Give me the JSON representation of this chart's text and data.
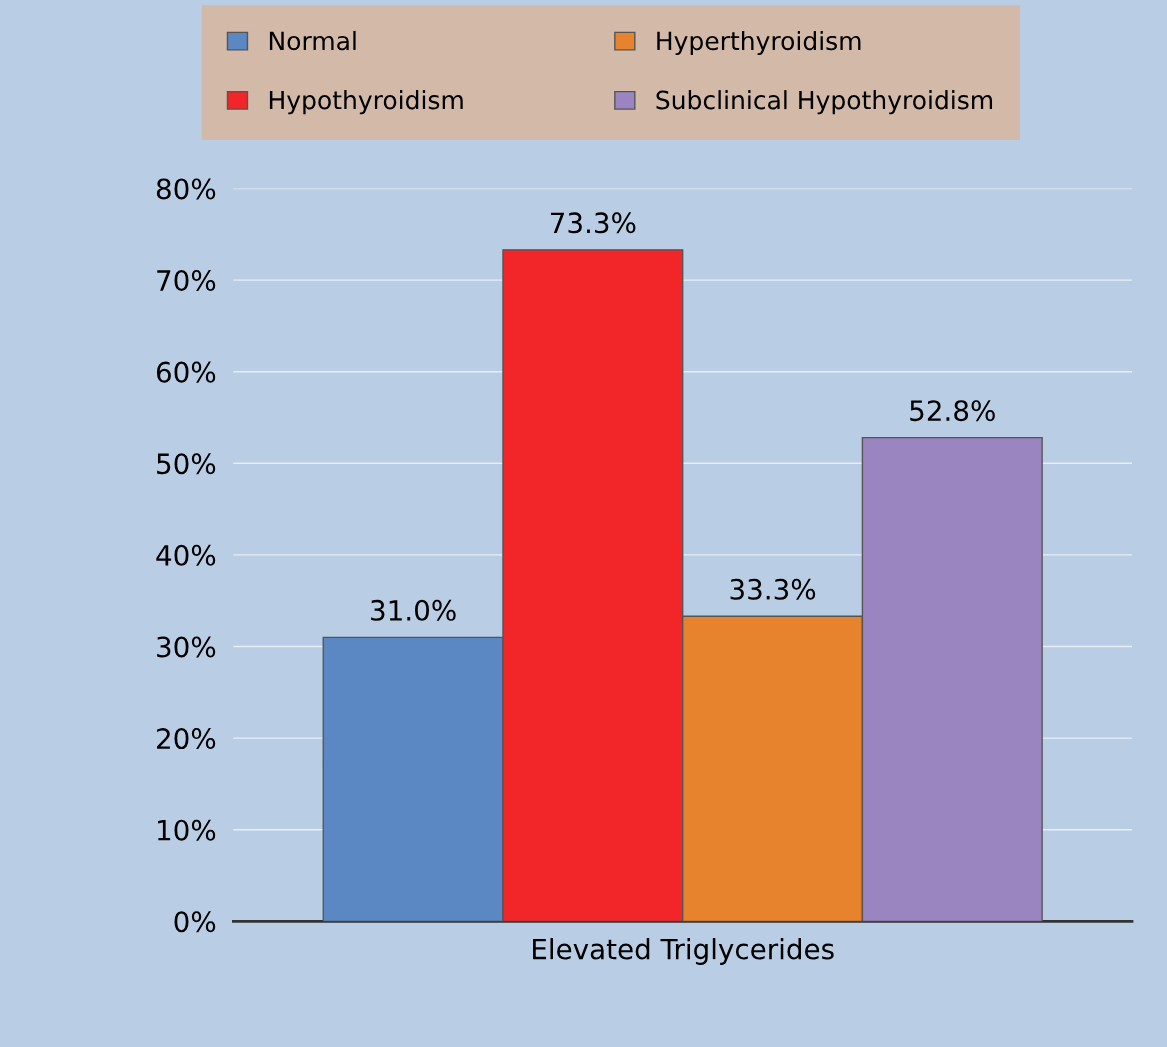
{
  "chart_data": {
    "type": "bar",
    "categories": [
      "Elevated Triglycerides"
    ],
    "series": [
      {
        "name": "Normal",
        "color": "#5b87c2",
        "values": [
          31.0
        ],
        "value_labels": [
          "31.0%"
        ]
      },
      {
        "name": "Hypothyroidism",
        "color": "#f22528",
        "values": [
          73.3
        ],
        "value_labels": [
          "73.3%"
        ]
      },
      {
        "name": "Hyperthyroidism",
        "color": "#e6832c",
        "values": [
          33.3
        ],
        "value_labels": [
          "33.3%"
        ]
      },
      {
        "name": "Subclinical Hypothyroidism",
        "color": "#9a85c0",
        "values": [
          52.8
        ],
        "value_labels": [
          "52.8%"
        ]
      }
    ],
    "ylim": [
      0,
      80
    ],
    "yticks": [
      {
        "value": 0,
        "label": "0%"
      },
      {
        "value": 10,
        "label": "10%"
      },
      {
        "value": 20,
        "label": "20%"
      },
      {
        "value": 30,
        "label": "30%"
      },
      {
        "value": 40,
        "label": "40%"
      },
      {
        "value": 50,
        "label": "50%"
      },
      {
        "value": 60,
        "label": "60%"
      },
      {
        "value": 70,
        "label": "70%"
      },
      {
        "value": 80,
        "label": "80%"
      }
    ],
    "grid": "y",
    "legend": "top"
  }
}
